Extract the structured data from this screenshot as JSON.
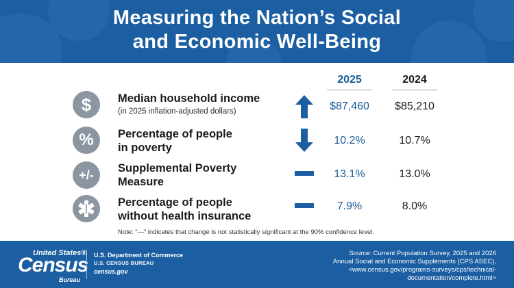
{
  "header": {
    "title_line1": "Measuring the Nation’s Social",
    "title_line2": "and Economic Well-Being"
  },
  "columns": {
    "col1": "2025",
    "col2": "2024"
  },
  "rows": [
    {
      "icon": "dollar-icon",
      "glyph": "$",
      "label_line1": "Median household income",
      "label_line2": "",
      "sublabel": "(in 2025 inflation-adjusted dollars)",
      "trend": "up",
      "value_2025": "$87,460",
      "value_2024": "$85,210"
    },
    {
      "icon": "percent-icon",
      "glyph": "%",
      "label_line1": "Percentage of people",
      "label_line2": "in poverty",
      "sublabel": "",
      "trend": "down",
      "value_2025": "10.2%",
      "value_2024": "10.7%"
    },
    {
      "icon": "plus-minus-icon",
      "glyph": "+/-",
      "label_line1": "Supplemental Poverty",
      "label_line2": "Measure",
      "sublabel": "",
      "trend": "no-change",
      "value_2025": "13.1%",
      "value_2024": "13.0%"
    },
    {
      "icon": "medical-star-icon",
      "glyph": "",
      "label_line1": "Percentage of people",
      "label_line2": "without health insurance",
      "sublabel": "",
      "trend": "no-change",
      "value_2025": "7.9%",
      "value_2024": "8.0%"
    }
  ],
  "note": "Note: “—” indicates that change is not statistically significant at the 90% confidence level.",
  "footer": {
    "logo_top": "United States®",
    "logo_main": "Census",
    "logo_bureau": "Bureau",
    "dept_line1": "U.S. Department of Commerce",
    "dept_line2": "U.S. CENSUS BUREAU",
    "dept_line3": "census.gov",
    "source_line1": "Source: Current Population Survey, 2025 and 2026",
    "source_line2": "Annual Social and Economic Supplements (CPS ASEC),",
    "source_line3": "<www.census.gov/programs-surveys/cps/technical-",
    "source_line4": "documentation/complete.html>"
  },
  "colors": {
    "brand_blue": "#1b5ea1",
    "value_blue": "#1c5a96",
    "icon_gray": "#8c96a3"
  }
}
